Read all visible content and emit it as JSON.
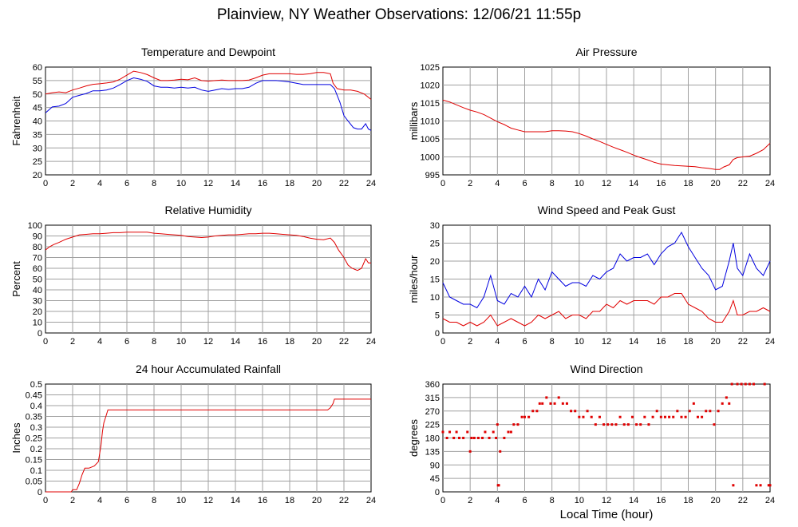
{
  "page": {
    "title": "Plainview, NY Weather Observations: 12/06/21 11:55p",
    "x_axis_label": "Local Time (hour)"
  },
  "colors": {
    "red": "#e00000",
    "blue": "#0000e0",
    "grid": "#a0a0a0"
  },
  "chart_data": [
    {
      "id": "temp",
      "type": "line",
      "title": "Temperature and Dewpoint",
      "ylabel": "Fahrenheit",
      "xlim": [
        0,
        24
      ],
      "ylim": [
        20,
        60
      ],
      "xticks": [
        0,
        2,
        4,
        6,
        8,
        10,
        12,
        14,
        16,
        18,
        20,
        22,
        24
      ],
      "yticks": [
        20,
        25,
        30,
        35,
        40,
        45,
        50,
        55,
        60
      ],
      "grid": true,
      "series": [
        {
          "name": "Temperature",
          "color": "#e00000",
          "x": [
            0,
            0.5,
            1,
            1.5,
            2,
            2.5,
            3,
            3.5,
            4,
            4.5,
            5,
            5.5,
            6,
            6.5,
            7,
            7.5,
            8,
            8.5,
            9,
            9.5,
            10,
            10.5,
            11,
            11.5,
            12,
            12.5,
            13,
            13.5,
            14,
            14.5,
            15,
            15.5,
            16,
            16.5,
            17,
            17.5,
            18,
            18.5,
            19,
            19.5,
            20,
            20.5,
            21,
            21.2,
            21.5,
            22,
            22.5,
            23,
            23.5,
            24
          ],
          "values": [
            50,
            50.5,
            50.8,
            50.5,
            51.5,
            52.2,
            53,
            53.6,
            53.8,
            54.1,
            54.5,
            55.5,
            57,
            58.5,
            58,
            57.2,
            56,
            55,
            55,
            55.2,
            55.5,
            55.3,
            56,
            55,
            54.8,
            55,
            55.2,
            55,
            55,
            55,
            55.2,
            56,
            57,
            57.5,
            57.5,
            57.5,
            57.5,
            57.3,
            57.3,
            57.5,
            58,
            58,
            57.5,
            54,
            52,
            51.5,
            51.5,
            51,
            50,
            48
          ]
        },
        {
          "name": "Dewpoint",
          "color": "#0000e0",
          "x": [
            0,
            0.5,
            1,
            1.5,
            2,
            2.5,
            3,
            3.5,
            4,
            4.5,
            5,
            5.5,
            6,
            6.5,
            7,
            7.5,
            8,
            8.5,
            9,
            9.5,
            10,
            10.5,
            11,
            11.5,
            12,
            12.5,
            13,
            13.5,
            14,
            14.5,
            15,
            15.5,
            16,
            16.5,
            17,
            17.5,
            18,
            18.5,
            19,
            19.5,
            20,
            20.5,
            21,
            21.3,
            21.7,
            22,
            22.3,
            22.7,
            23,
            23.3,
            23.6,
            23.8,
            24
          ],
          "values": [
            43,
            45.2,
            45.5,
            46.5,
            48.8,
            49.5,
            50.2,
            51.2,
            51.2,
            51.5,
            52.2,
            53.5,
            55,
            56,
            55.5,
            54.7,
            53,
            52.5,
            52.5,
            52.2,
            52.5,
            52.2,
            52.5,
            51.5,
            51,
            51.5,
            52,
            51.7,
            52,
            52,
            52.5,
            54,
            55,
            55,
            55,
            54.8,
            54.5,
            54,
            53.5,
            53.5,
            53.5,
            53.5,
            53.5,
            52,
            47,
            42,
            40,
            37.5,
            37,
            37,
            39,
            37,
            36.5
          ]
        }
      ]
    },
    {
      "id": "pressure",
      "type": "line",
      "title": "Air Pressure",
      "ylabel": "millibars",
      "xlim": [
        0,
        24
      ],
      "ylim": [
        995,
        1025
      ],
      "xticks": [
        0,
        2,
        4,
        6,
        8,
        10,
        12,
        14,
        16,
        18,
        20,
        22,
        24
      ],
      "yticks": [
        995,
        1000,
        1005,
        1010,
        1015,
        1020,
        1025
      ],
      "grid": true,
      "series": [
        {
          "name": "Pressure",
          "color": "#e00000",
          "x": [
            0,
            0.5,
            1,
            1.5,
            2,
            2.5,
            3,
            3.5,
            4,
            4.5,
            5,
            5.5,
            6,
            6.5,
            7,
            7.5,
            8,
            8.5,
            9,
            9.5,
            10,
            10.5,
            11,
            11.5,
            12,
            12.5,
            13,
            13.5,
            14,
            14.5,
            15,
            15.5,
            16,
            16.5,
            17,
            17.5,
            18,
            18.5,
            19,
            19.5,
            20,
            20.3,
            20.6,
            21,
            21.3,
            21.6,
            22,
            22.5,
            23,
            23.5,
            24
          ],
          "values": [
            1015.8,
            1015.3,
            1014.5,
            1013.7,
            1013,
            1012.5,
            1011.8,
            1010.8,
            1009.8,
            1009,
            1008,
            1007.5,
            1007,
            1007,
            1007,
            1007,
            1007.3,
            1007.3,
            1007.2,
            1007,
            1006.5,
            1005.8,
            1005,
            1004.3,
            1003.5,
            1002.7,
            1002,
            1001.3,
            1000.5,
            999.8,
            999.2,
            998.5,
            998,
            997.8,
            997.6,
            997.5,
            997.4,
            997.3,
            997,
            996.8,
            996.5,
            996.5,
            997.2,
            997.8,
            999.3,
            999.8,
            1000,
            1000.2,
            1001,
            1002,
            1003.8
          ]
        }
      ]
    },
    {
      "id": "humidity",
      "type": "line",
      "title": "Relative Humidity",
      "ylabel": "Percent",
      "xlim": [
        0,
        24
      ],
      "ylim": [
        0,
        100
      ],
      "xticks": [
        0,
        2,
        4,
        6,
        8,
        10,
        12,
        14,
        16,
        18,
        20,
        22,
        24
      ],
      "yticks": [
        0,
        10,
        20,
        30,
        40,
        50,
        60,
        70,
        80,
        90,
        100
      ],
      "grid": true,
      "series": [
        {
          "name": "Relative Humidity",
          "color": "#e00000",
          "x": [
            0,
            0.3,
            0.6,
            1,
            1.5,
            2,
            2.5,
            3,
            3.5,
            4,
            4.5,
            5,
            5.5,
            6,
            6.5,
            7,
            7.5,
            8,
            8.5,
            9,
            9.5,
            10,
            10.5,
            11,
            11.5,
            12,
            12.5,
            13,
            13.5,
            14,
            14.5,
            15,
            15.5,
            16,
            16.5,
            17,
            17.5,
            18,
            18.5,
            19,
            19.5,
            20,
            20.5,
            21,
            21.3,
            21.6,
            22,
            22.3,
            22.6,
            23,
            23.3,
            23.6,
            23.8,
            24
          ],
          "values": [
            77,
            80,
            82,
            84,
            87,
            89,
            91,
            91.5,
            92,
            92,
            92.5,
            93,
            93,
            93.5,
            93.5,
            93.5,
            93.5,
            92.5,
            92,
            91.5,
            91,
            90.5,
            89.5,
            89,
            88.5,
            89,
            90,
            90.5,
            91,
            91,
            91.5,
            92,
            92,
            92.5,
            92.5,
            92,
            91.5,
            91,
            90.5,
            89.5,
            88,
            87,
            86.5,
            88,
            84,
            77,
            70,
            63,
            60,
            58,
            60,
            69,
            65,
            65
          ]
        }
      ]
    },
    {
      "id": "wind",
      "type": "line",
      "title": "Wind Speed and Peak Gust",
      "ylabel": "miles/hour",
      "xlim": [
        0,
        24
      ],
      "ylim": [
        0,
        30
      ],
      "xticks": [
        0,
        2,
        4,
        6,
        8,
        10,
        12,
        14,
        16,
        18,
        20,
        22,
        24
      ],
      "yticks": [
        0,
        5,
        10,
        15,
        20,
        25,
        30
      ],
      "grid": true,
      "series": [
        {
          "name": "Peak Gust",
          "color": "#0000e0",
          "x": [
            0,
            0.5,
            1,
            1.5,
            2,
            2.5,
            3,
            3.5,
            4,
            4.5,
            5,
            5.5,
            6,
            6.5,
            7,
            7.5,
            8,
            8.5,
            9,
            9.5,
            10,
            10.5,
            11,
            11.5,
            12,
            12.5,
            13,
            13.5,
            14,
            14.5,
            15,
            15.5,
            16,
            16.5,
            17,
            17.5,
            18,
            18.5,
            19,
            19.5,
            20,
            20.5,
            21,
            21.3,
            21.6,
            22,
            22.5,
            23,
            23.5,
            24
          ],
          "values": [
            14,
            10,
            9,
            8,
            8,
            7,
            10,
            16,
            9,
            8,
            11,
            10,
            13,
            10,
            15,
            12,
            17,
            15,
            13,
            14,
            14,
            13,
            16,
            15,
            17,
            18,
            22,
            20,
            21,
            21,
            22,
            19,
            22,
            24,
            25,
            28,
            24,
            21,
            18,
            16,
            12,
            13,
            20,
            25,
            18,
            16,
            22,
            18,
            16,
            20
          ]
        },
        {
          "name": "Wind Speed",
          "color": "#e00000",
          "x": [
            0,
            0.5,
            1,
            1.5,
            2,
            2.5,
            3,
            3.5,
            4,
            4.5,
            5,
            5.5,
            6,
            6.5,
            7,
            7.5,
            8,
            8.5,
            9,
            9.5,
            10,
            10.5,
            11,
            11.5,
            12,
            12.5,
            13,
            13.5,
            14,
            14.5,
            15,
            15.5,
            16,
            16.5,
            17,
            17.5,
            18,
            18.5,
            19,
            19.5,
            20,
            20.5,
            21,
            21.3,
            21.6,
            22,
            22.5,
            23,
            23.5,
            24
          ],
          "values": [
            4,
            3,
            3,
            2,
            3,
            2,
            3,
            5,
            2,
            3,
            4,
            3,
            2,
            3,
            5,
            4,
            5,
            6,
            4,
            5,
            5,
            4,
            6,
            6,
            8,
            7,
            9,
            8,
            9,
            9,
            9,
            8,
            10,
            10,
            11,
            11,
            8,
            7,
            6,
            4,
            3,
            3,
            6,
            9,
            5,
            5,
            6,
            6,
            7,
            6
          ]
        }
      ]
    },
    {
      "id": "rain",
      "type": "line",
      "title": "24 hour Accumulated Rainfall",
      "ylabel": "Inches",
      "xlim": [
        0,
        24
      ],
      "ylim": [
        0,
        0.5
      ],
      "xticks": [
        0,
        2,
        4,
        6,
        8,
        10,
        12,
        14,
        16,
        18,
        20,
        22,
        24
      ],
      "yticks": [
        0,
        0.05,
        0.1,
        0.15,
        0.2,
        0.25,
        0.3,
        0.35,
        0.4,
        0.45,
        0.5
      ],
      "grid": true,
      "series": [
        {
          "name": "Rainfall",
          "color": "#e00000",
          "x": [
            0,
            1.9,
            2.0,
            2.3,
            2.5,
            2.7,
            2.9,
            3.2,
            3.6,
            3.9,
            4.0,
            4.1,
            4.2,
            4.3,
            4.45,
            4.6,
            5,
            10,
            15,
            20,
            20.8,
            21.0,
            21.2,
            21.3,
            21.5,
            22,
            23,
            24
          ],
          "values": [
            0,
            0,
            0.01,
            0.01,
            0.04,
            0.08,
            0.11,
            0.11,
            0.12,
            0.14,
            0.18,
            0.22,
            0.28,
            0.32,
            0.35,
            0.38,
            0.38,
            0.38,
            0.38,
            0.38,
            0.38,
            0.39,
            0.41,
            0.43,
            0.43,
            0.43,
            0.43,
            0.43
          ]
        }
      ]
    },
    {
      "id": "direction",
      "type": "scatter",
      "title": "Wind Direction",
      "ylabel": "degrees",
      "xlim": [
        0,
        24
      ],
      "ylim": [
        0,
        360
      ],
      "xticks": [
        0,
        2,
        4,
        6,
        8,
        10,
        12,
        14,
        16,
        18,
        20,
        22,
        24
      ],
      "yticks": [
        0,
        45,
        90,
        135,
        180,
        225,
        270,
        315,
        360
      ],
      "grid": true,
      "series": [
        {
          "name": "Wind Direction",
          "color": "#e00000",
          "x": [
            0,
            0.3,
            0.5,
            0.8,
            1,
            1.2,
            1.5,
            1.8,
            2,
            2.1,
            2.3,
            2.6,
            2.9,
            3.1,
            3.4,
            3.7,
            3.9,
            4.0,
            4.05,
            4.1,
            4.2,
            4.5,
            4.8,
            5,
            5.2,
            5.5,
            5.8,
            6,
            6.3,
            6.6,
            6.9,
            7.1,
            7.3,
            7.6,
            7.9,
            8.2,
            8.5,
            8.8,
            9.1,
            9.4,
            9.7,
            10,
            10.3,
            10.6,
            10.9,
            11.2,
            11.5,
            11.8,
            12.1,
            12.4,
            12.7,
            13,
            13.3,
            13.6,
            13.9,
            14.2,
            14.5,
            14.8,
            15.1,
            15.4,
            15.7,
            16,
            16.3,
            16.6,
            16.9,
            17.2,
            17.5,
            17.8,
            18.1,
            18.4,
            18.7,
            19,
            19.3,
            19.6,
            19.9,
            20.2,
            20.5,
            20.8,
            21,
            21.2,
            21.3,
            21.6,
            21.9,
            22.2,
            22.5,
            22.8,
            23,
            23.3,
            23.6,
            23.9,
            24
          ],
          "values": [
            200,
            180,
            200,
            180,
            200,
            180,
            180,
            200,
            135,
            180,
            180,
            180,
            180,
            200,
            180,
            200,
            180,
            225,
            22,
            22,
            135,
            180,
            200,
            200,
            225,
            225,
            250,
            250,
            250,
            270,
            270,
            295,
            295,
            315,
            295,
            295,
            315,
            295,
            295,
            270,
            270,
            250,
            250,
            270,
            250,
            225,
            250,
            225,
            225,
            225,
            225,
            250,
            225,
            225,
            250,
            225,
            225,
            250,
            225,
            250,
            270,
            250,
            250,
            250,
            250,
            270,
            250,
            250,
            270,
            295,
            250,
            250,
            270,
            270,
            225,
            270,
            295,
            315,
            295,
            360,
            22,
            360,
            360,
            360,
            360,
            360,
            22,
            22,
            360,
            22,
            22
          ]
        }
      ]
    }
  ]
}
